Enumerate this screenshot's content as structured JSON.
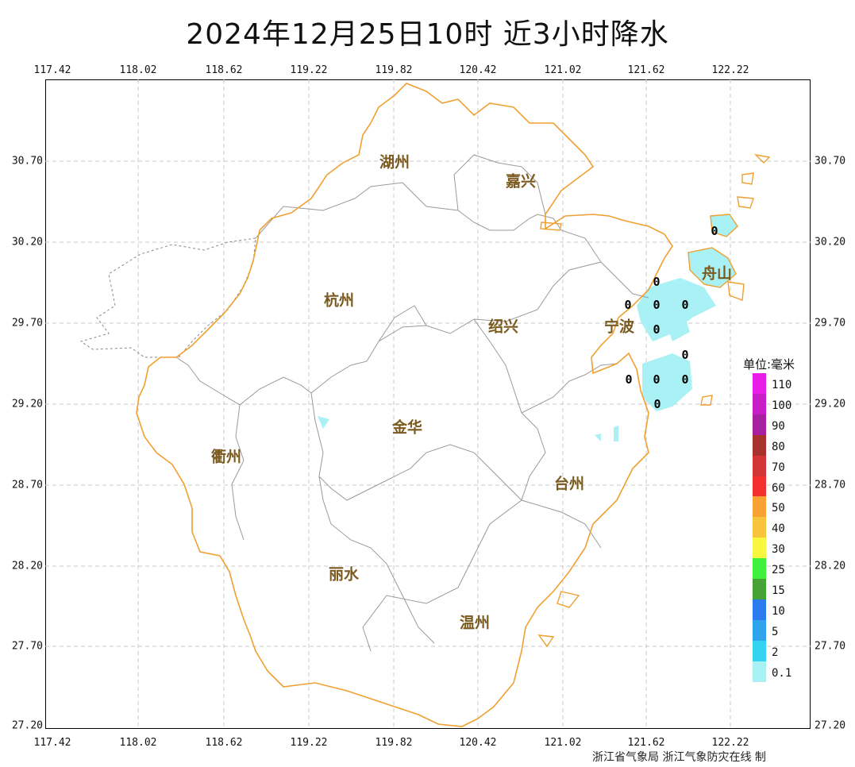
{
  "title": "2024年12月25日10时  近3小时降水",
  "longitude_ticks": [
    "117.42",
    "118.02",
    "118.62",
    "119.22",
    "119.82",
    "120.42",
    "121.02",
    "121.62",
    "122.22"
  ],
  "latitude_ticks": [
    "30.70",
    "30.20",
    "29.70",
    "29.20",
    "28.70",
    "28.20",
    "27.70",
    "27.20"
  ],
  "cities": [
    {
      "name": "湖州"
    },
    {
      "name": "嘉兴"
    },
    {
      "name": "杭州"
    },
    {
      "name": "绍兴"
    },
    {
      "name": "宁波"
    },
    {
      "name": "舟山"
    },
    {
      "name": "金华"
    },
    {
      "name": "衢州"
    },
    {
      "name": "台州"
    },
    {
      "name": "丽水"
    },
    {
      "name": "温州"
    }
  ],
  "station_values": [
    "0",
    "0",
    "0",
    "0",
    "0",
    "0",
    "0",
    "0",
    "0",
    "0",
    "0"
  ],
  "legend": {
    "title": "单位:毫米",
    "items": [
      {
        "label": "110",
        "color": "#e81ee8"
      },
      {
        "label": "100",
        "color": "#c81cc8"
      },
      {
        "label": "90",
        "color": "#a6209f"
      },
      {
        "label": "80",
        "color": "#a8322e"
      },
      {
        "label": "70",
        "color": "#d33634"
      },
      {
        "label": "60",
        "color": "#f4302e"
      },
      {
        "label": "50",
        "color": "#f7a233"
      },
      {
        "label": "40",
        "color": "#f7c43e"
      },
      {
        "label": "30",
        "color": "#f7f73f"
      },
      {
        "label": "25",
        "color": "#3ff03c"
      },
      {
        "label": "15",
        "color": "#46a234"
      },
      {
        "label": "10",
        "color": "#2c7bef"
      },
      {
        "label": "5",
        "color": "#2fa3ee"
      },
      {
        "label": "2",
        "color": "#33d4f2"
      },
      {
        "label": "0.1",
        "color": "#a9f1f5"
      }
    ]
  },
  "credit": "浙江省气象局  浙江气象防灾在线 制",
  "colors": {
    "coast": "#f0a030",
    "border": "#9a9a9a",
    "rain_light": "#a9f1f5",
    "frame": "#000000"
  }
}
